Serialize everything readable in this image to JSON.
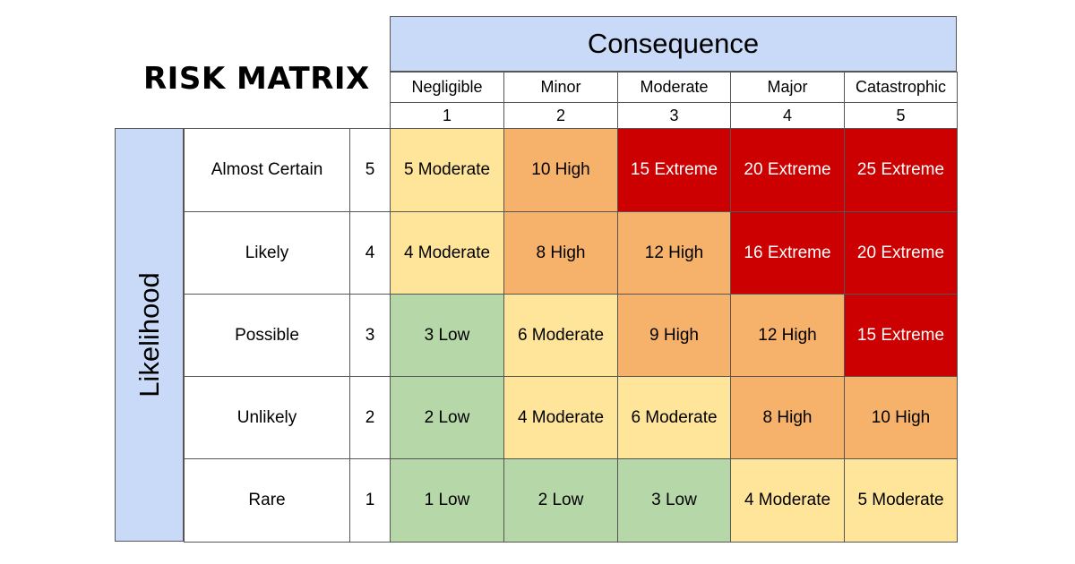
{
  "title": "RISK MATRIX",
  "consequence_header": "Consequence",
  "likelihood_header": "Likelihood",
  "colors": {
    "header_blue": "#c9daf8",
    "low": "#b6d7a8",
    "moderate": "#ffe599",
    "high": "#f6b26b",
    "extreme": "#cc0000"
  },
  "columns": [
    {
      "label": "Negligible",
      "number": "1"
    },
    {
      "label": "Minor",
      "number": "2"
    },
    {
      "label": "Moderate",
      "number": "3"
    },
    {
      "label": "Major",
      "number": "4"
    },
    {
      "label": "Catastrophic",
      "number": "5"
    }
  ],
  "rows": [
    {
      "label": "Almost Certain",
      "number": "5",
      "cells": [
        {
          "text": "5 Moderate",
          "level": "moderate"
        },
        {
          "text": "10 High",
          "level": "high"
        },
        {
          "text": "15 Extreme",
          "level": "extreme"
        },
        {
          "text": "20 Extreme",
          "level": "extreme"
        },
        {
          "text": "25 Extreme",
          "level": "extreme"
        }
      ]
    },
    {
      "label": "Likely",
      "number": "4",
      "cells": [
        {
          "text": "4 Moderate",
          "level": "moderate"
        },
        {
          "text": "8 High",
          "level": "high"
        },
        {
          "text": "12 High",
          "level": "high"
        },
        {
          "text": "16 Extreme",
          "level": "extreme"
        },
        {
          "text": "20 Extreme",
          "level": "extreme"
        }
      ]
    },
    {
      "label": "Possible",
      "number": "3",
      "cells": [
        {
          "text": "3 Low",
          "level": "low"
        },
        {
          "text": "6 Moderate",
          "level": "moderate"
        },
        {
          "text": "9 High",
          "level": "high"
        },
        {
          "text": "12 High",
          "level": "high"
        },
        {
          "text": "15 Extreme",
          "level": "extreme"
        }
      ]
    },
    {
      "label": "Unlikely",
      "number": "2",
      "cells": [
        {
          "text": "2 Low",
          "level": "low"
        },
        {
          "text": "4 Moderate",
          "level": "moderate"
        },
        {
          "text": "6 Moderate",
          "level": "moderate"
        },
        {
          "text": "8 High",
          "level": "high"
        },
        {
          "text": "10 High",
          "level": "high"
        }
      ]
    },
    {
      "label": "Rare",
      "number": "1",
      "cells": [
        {
          "text": "1 Low",
          "level": "low"
        },
        {
          "text": "2 Low",
          "level": "low"
        },
        {
          "text": "3 Low",
          "level": "low"
        },
        {
          "text": "4 Moderate",
          "level": "moderate"
        },
        {
          "text": "5 Moderate",
          "level": "moderate"
        }
      ]
    }
  ]
}
